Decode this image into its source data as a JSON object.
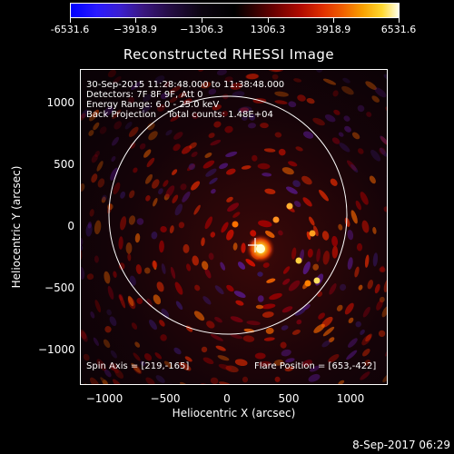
{
  "colorbar": {
    "ticks": [
      "-6531.6",
      "−3918.9",
      "−1306.3",
      "1306.3",
      "3918.9",
      "6531.6"
    ]
  },
  "title": "Reconstructed RHESSI Image",
  "info": {
    "time": "30-Sep-2015 11:28:48.000 to 11:38:48.000",
    "detectors": "Detectors: 7F 8F 9F, Att 0",
    "energy": "Energy Range: 6.0 - 25.0 keV",
    "method_counts": "Back Projection    Total counts: 1.48E+04",
    "spin_axis": "Spin Axis = [219,-165]",
    "flare_position": "Flare Position = [653,-422]"
  },
  "axes": {
    "xlabel": "Heliocentric X (arcsec)",
    "ylabel": "Heliocentric Y (arcsec)",
    "xticks": [
      "−1000",
      "−500",
      "0",
      "500",
      "1000"
    ],
    "yticks": [
      "1000",
      "500",
      "0",
      "−500",
      "−1000"
    ]
  },
  "footer": {
    "date": "8-Sep-2017 06:29"
  },
  "icons": {
    "spin_axis_marker": "plus-marker-icon",
    "solar_limb": "circle-outline-icon"
  }
}
